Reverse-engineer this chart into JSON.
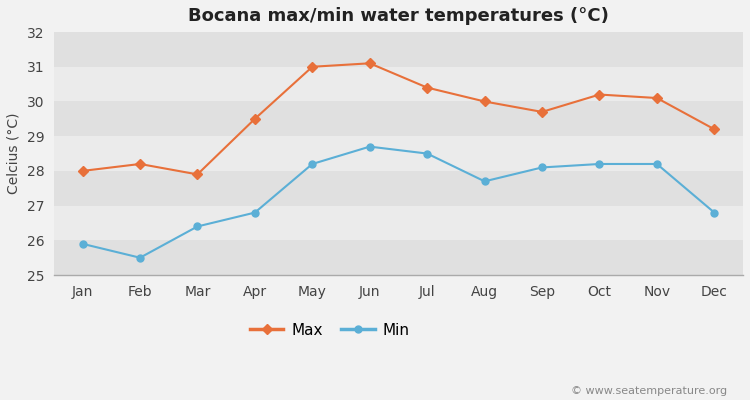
{
  "title": "Bocana max/min water temperatures (°C)",
  "ylabel": "Celcius (°C)",
  "months": [
    "Jan",
    "Feb",
    "Mar",
    "Apr",
    "May",
    "Jun",
    "Jul",
    "Aug",
    "Sep",
    "Oct",
    "Nov",
    "Dec"
  ],
  "max_temps": [
    28.0,
    28.2,
    27.9,
    29.5,
    31.0,
    31.1,
    30.4,
    30.0,
    29.7,
    30.2,
    30.1,
    29.2
  ],
  "min_temps": [
    25.9,
    25.5,
    26.4,
    26.8,
    28.2,
    28.7,
    28.5,
    27.7,
    28.1,
    28.2,
    28.2,
    26.8
  ],
  "max_color": "#e8703a",
  "min_color": "#5bafd6",
  "bg_color": "#f2f2f2",
  "plot_bg_color": "#f2f2f2",
  "band_color_light": "#ebebeb",
  "band_color_dark": "#e0e0e0",
  "ylim": [
    25,
    32
  ],
  "yticks": [
    25,
    26,
    27,
    28,
    29,
    30,
    31,
    32
  ],
  "legend_labels": [
    "Max",
    "Min"
  ],
  "watermark": "© www.seatemperature.org",
  "title_fontsize": 13,
  "label_fontsize": 10,
  "tick_fontsize": 10,
  "watermark_fontsize": 8
}
